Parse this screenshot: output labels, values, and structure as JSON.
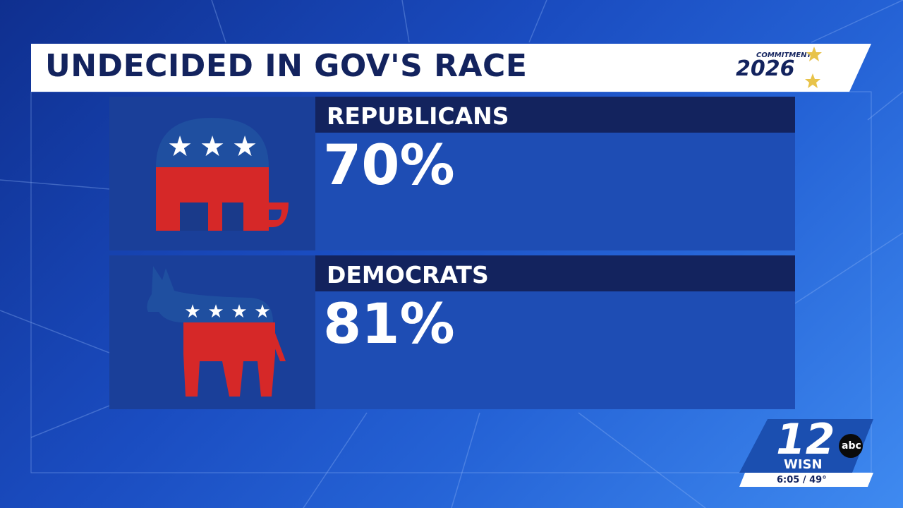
{
  "header": {
    "title": "UNDECIDED IN GOV'S RACE",
    "logo_top": "COMMITMENT",
    "logo_year": "2026"
  },
  "rows": [
    {
      "label": "REPUBLICANS",
      "value": "70%"
    },
    {
      "label": "DEMOCRATS",
      "value": "81%"
    }
  ],
  "station": {
    "channel": "12",
    "network": "abc",
    "call_sign": "WISN",
    "status": "6:05 / 49°"
  }
}
